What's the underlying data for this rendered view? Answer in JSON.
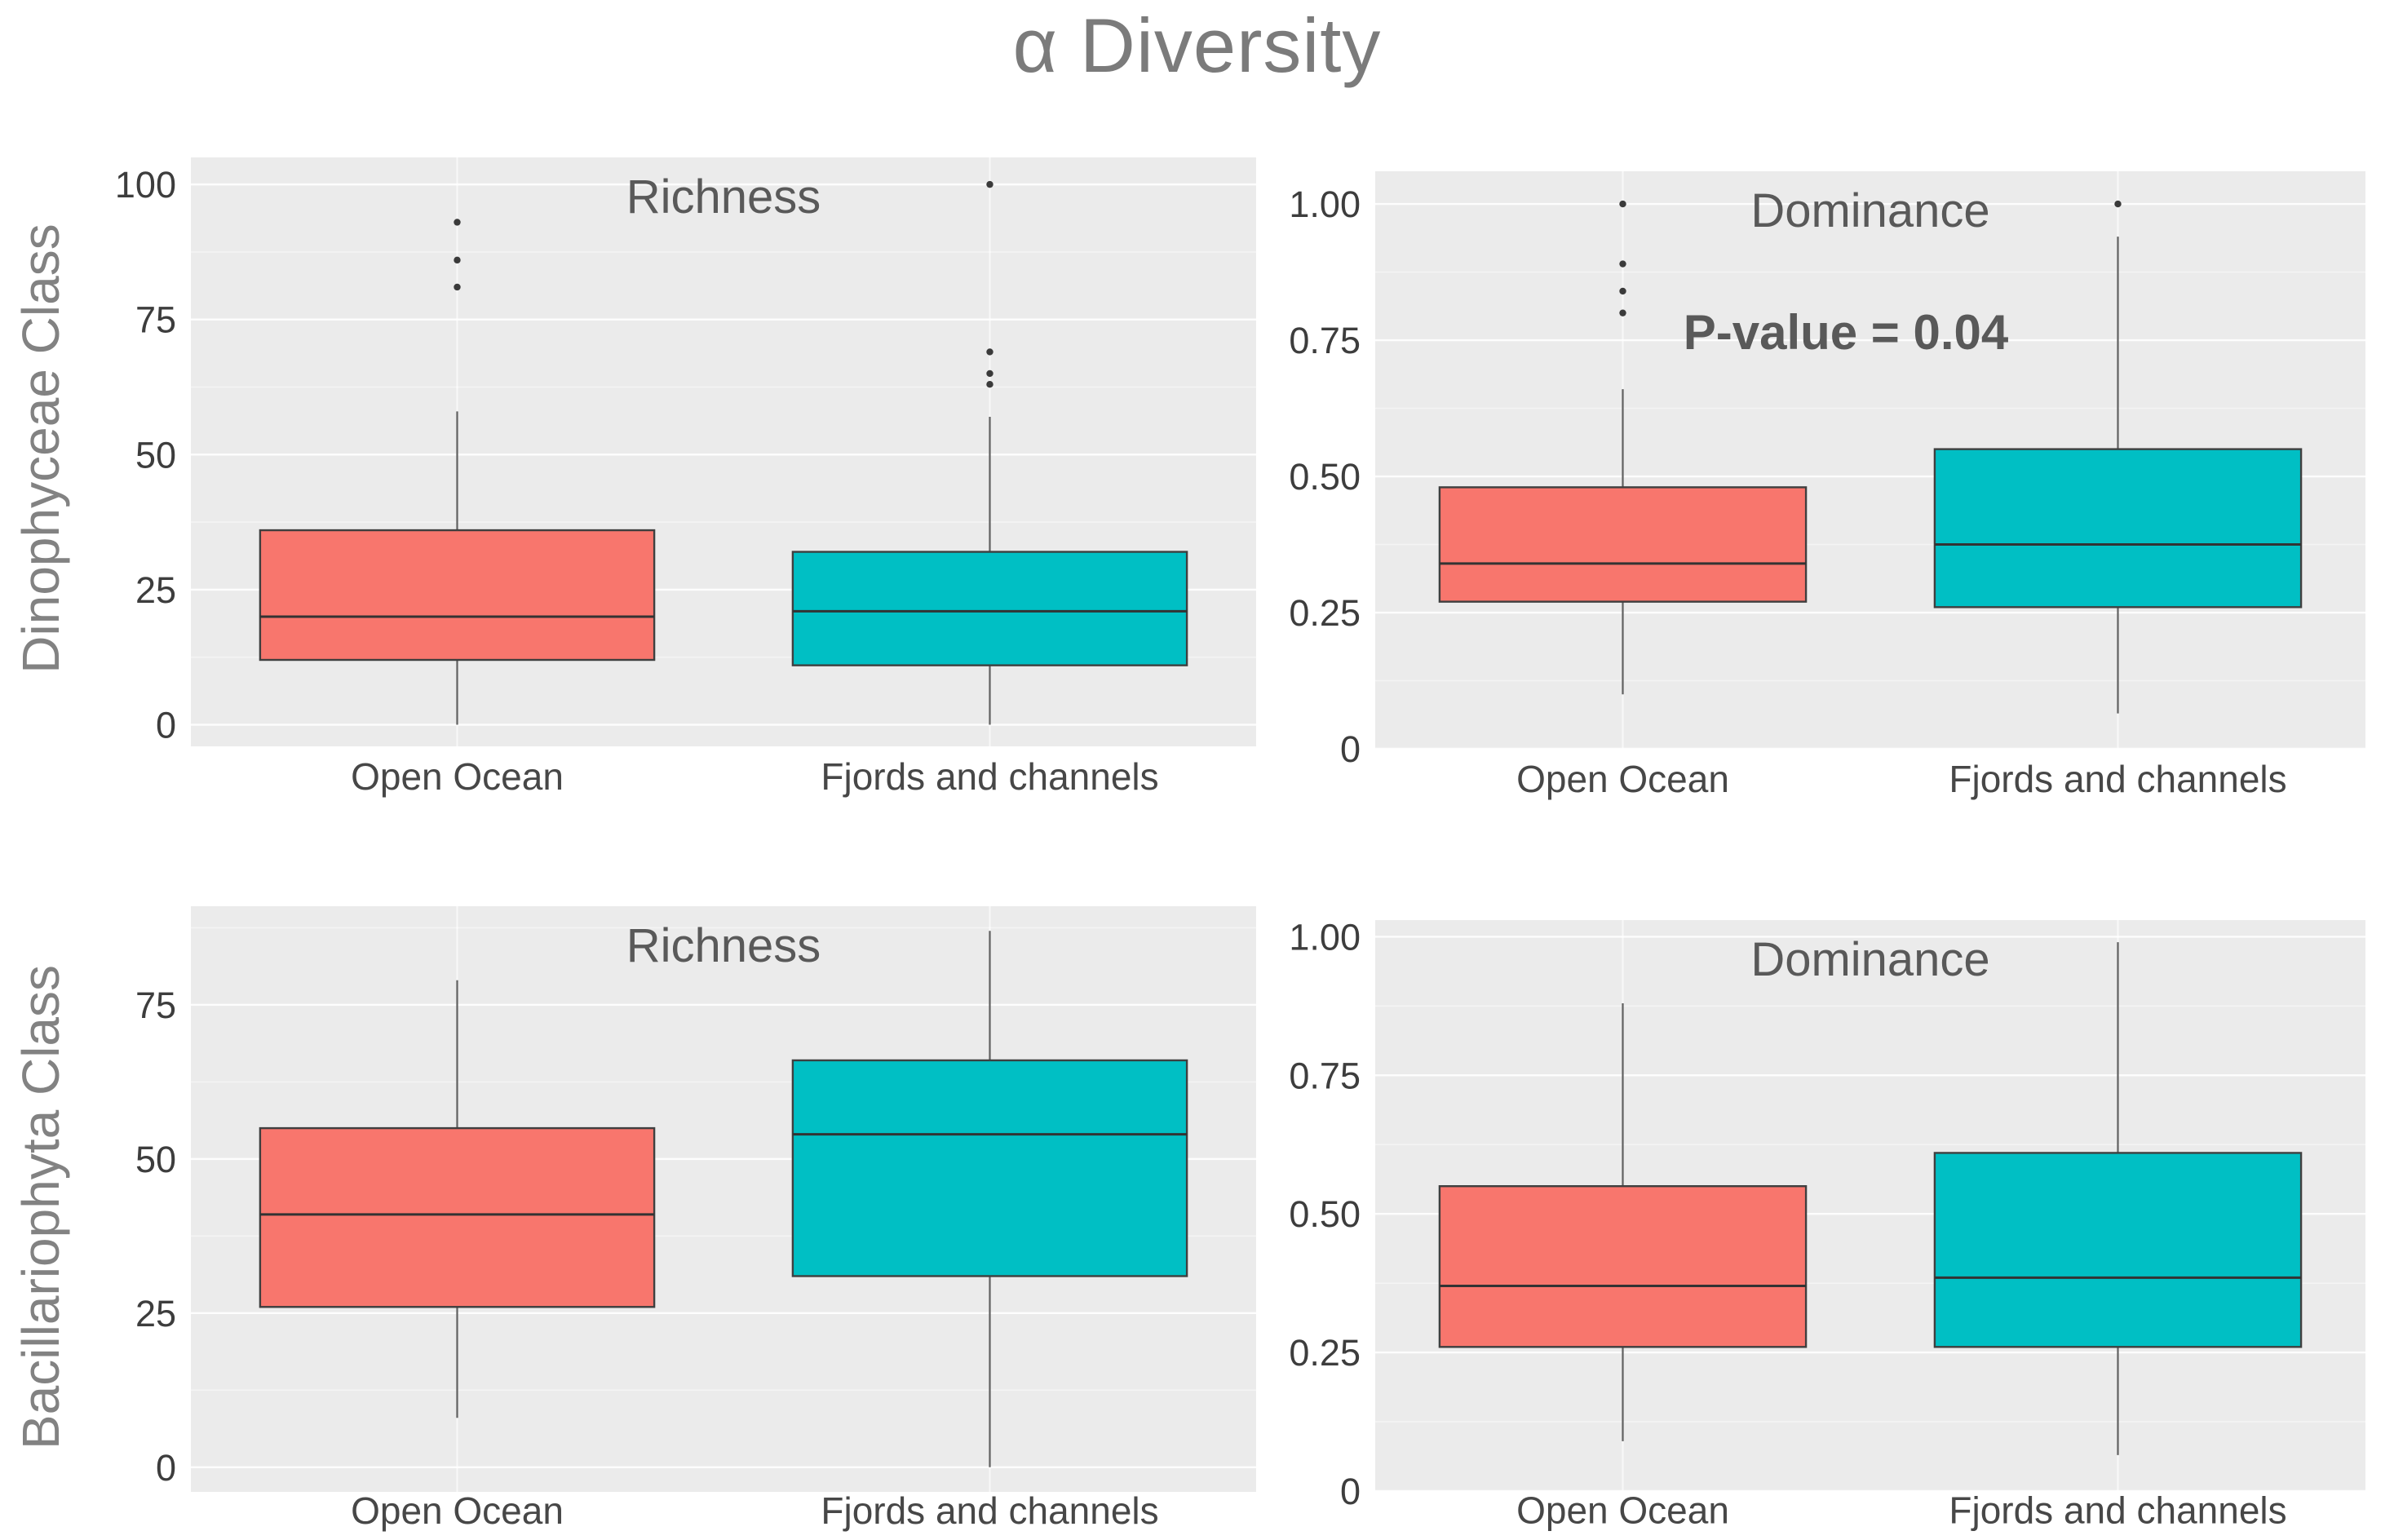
{
  "title": "α Diversity",
  "rows": [
    {
      "label": "Dinophyceae Class"
    },
    {
      "label": "Bacillariophyta Class"
    }
  ],
  "categories": [
    "Open Ocean",
    "Fjords and channels"
  ],
  "colors": {
    "open_ocean": "#F8766D",
    "fjords_and_channels": "#00BFC4",
    "panel_bg": "#EBEBEB",
    "grid_major": "#FFFFFF",
    "grid_minor": "#FFFFFF",
    "box_border": "#3f3f3f",
    "median_line": "#333333",
    "whisker": "#606060",
    "outlier": "#3a3a3a",
    "tick_text": "#3d3d3d",
    "category_text": "#474747",
    "panel_title_text": "#595959",
    "annotation_text": "#595959",
    "main_title_text": "#7b7b7b",
    "row_label_text": "#828282"
  },
  "chart_data": [
    {
      "id": "dino-richness",
      "type": "boxplot",
      "row": "Dinophyceae Class",
      "title": "Richness",
      "annotation": "",
      "ylim": [
        -4,
        105
      ],
      "yticks": [
        {
          "label": "0",
          "value": 0
        },
        {
          "label": "25",
          "value": 25
        },
        {
          "label": "50",
          "value": 50
        },
        {
          "label": "75",
          "value": 75
        },
        {
          "label": "100",
          "value": 100
        }
      ],
      "categories": [
        "Open Ocean",
        "Fjords and channels"
      ],
      "series": [
        {
          "name": "Open Ocean",
          "color": "#F8766D",
          "whisker_low": 0,
          "q1": 12,
          "median": 20,
          "q3": 36,
          "whisker_high": 58,
          "outliers": [
            81,
            86,
            93
          ]
        },
        {
          "name": "Fjords and channels",
          "color": "#00BFC4",
          "whisker_low": 0,
          "q1": 11,
          "median": 21,
          "q3": 32,
          "whisker_high": 57,
          "outliers": [
            63,
            65,
            69,
            100
          ]
        }
      ]
    },
    {
      "id": "dino-dominance",
      "type": "boxplot",
      "row": "Dinophyceae Class",
      "title": "Dominance",
      "annotation": "P-value = 0.04",
      "ylim": [
        0,
        1.06
      ],
      "yticks": [
        {
          "label": "0",
          "value": 0
        },
        {
          "label": "0.25",
          "value": 0.25
        },
        {
          "label": "0.50",
          "value": 0.5
        },
        {
          "label": "0.75",
          "value": 0.75
        },
        {
          "label": "1.00",
          "value": 1.0
        }
      ],
      "categories": [
        "Open Ocean",
        "Fjords and channels"
      ],
      "series": [
        {
          "name": "Open Ocean",
          "color": "#F8766D",
          "whisker_low": 0.1,
          "q1": 0.27,
          "median": 0.34,
          "q3": 0.48,
          "whisker_high": 0.66,
          "outliers": [
            0.8,
            0.84,
            0.89,
            1.0
          ]
        },
        {
          "name": "Fjords and channels",
          "color": "#00BFC4",
          "whisker_low": 0.065,
          "q1": 0.26,
          "median": 0.375,
          "q3": 0.55,
          "whisker_high": 0.94,
          "outliers": [
            1.0
          ]
        }
      ]
    },
    {
      "id": "bacill-richness",
      "type": "boxplot",
      "row": "Bacillariophyta Class",
      "title": "Richness",
      "annotation": "",
      "ylim": [
        -4,
        91
      ],
      "yticks": [
        {
          "label": "0",
          "value": 0
        },
        {
          "label": "25",
          "value": 25
        },
        {
          "label": "50",
          "value": 50
        },
        {
          "label": "75",
          "value": 75
        }
      ],
      "categories": [
        "Open Ocean",
        "Fjords and channels"
      ],
      "series": [
        {
          "name": "Open Ocean",
          "color": "#F8766D",
          "whisker_low": 8,
          "q1": 26,
          "median": 41,
          "q3": 55,
          "whisker_high": 79,
          "outliers": []
        },
        {
          "name": "Fjords and channels",
          "color": "#00BFC4",
          "whisker_low": 0,
          "q1": 31,
          "median": 54,
          "q3": 66,
          "whisker_high": 87,
          "outliers": []
        }
      ]
    },
    {
      "id": "bacill-dominance",
      "type": "boxplot",
      "row": "Bacillariophyta Class",
      "title": "Dominance",
      "annotation": "",
      "ylim": [
        0,
        1.03
      ],
      "yticks": [
        {
          "label": "0",
          "value": 0
        },
        {
          "label": "0.25",
          "value": 0.25
        },
        {
          "label": "0.50",
          "value": 0.5
        },
        {
          "label": "0.75",
          "value": 0.75
        },
        {
          "label": "1.00",
          "value": 1.0
        }
      ],
      "categories": [
        "Open Ocean",
        "Fjords and channels"
      ],
      "series": [
        {
          "name": "Open Ocean",
          "color": "#F8766D",
          "whisker_low": 0.09,
          "q1": 0.26,
          "median": 0.37,
          "q3": 0.55,
          "whisker_high": 0.88,
          "outliers": []
        },
        {
          "name": "Fjords and channels",
          "color": "#00BFC4",
          "whisker_low": 0.065,
          "q1": 0.26,
          "median": 0.385,
          "q3": 0.61,
          "whisker_high": 0.99,
          "outliers": []
        }
      ]
    }
  ]
}
